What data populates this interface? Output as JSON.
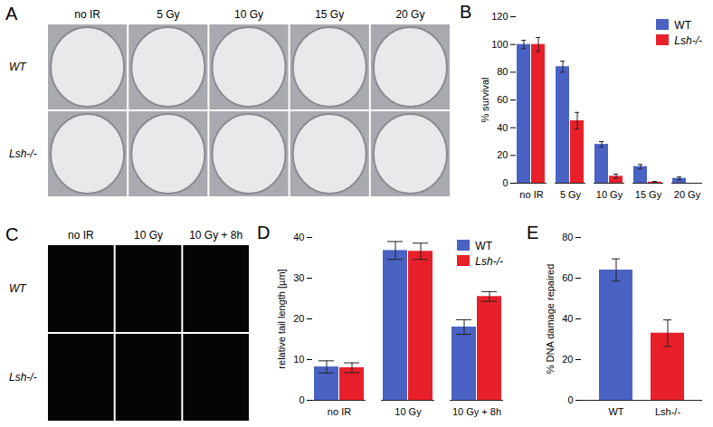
{
  "images": [
    {
      "title": "A",
      "type": "image",
      "columns": [
        "no IR",
        "5 Gy",
        "10 Gy",
        "15 Gy",
        "20 Gy"
      ],
      "rows": [
        "WT",
        "Lsh-/-"
      ]
    },
    {
      "title": "C",
      "type": "image",
      "columns": [
        "no IR",
        "10 Gy",
        "10 Gy + 8h"
      ],
      "rows": [
        "WT",
        "Lsh-/-"
      ]
    }
  ],
  "chart_data": [
    {
      "type": "bar",
      "title": "B",
      "y_label": "% survival",
      "categories": [
        "no IR",
        "5 Gy",
        "10 Gy",
        "15 Gy",
        "20 Gy"
      ],
      "series": [
        {
          "name": "WT",
          "color": "#4a62c4",
          "values": [
            100,
            84,
            28,
            12,
            3.5
          ],
          "errors": [
            3,
            4,
            2,
            1.5,
            1
          ]
        },
        {
          "name": "Lsh-/-",
          "color": "#e8202a",
          "values": [
            100,
            45,
            5,
            0.8,
            0
          ],
          "errors": [
            5,
            6,
            1.5,
            0.5,
            0
          ]
        }
      ],
      "ylim": [
        0,
        120
      ],
      "yticks": [
        0,
        20,
        40,
        60,
        80,
        100,
        120
      ],
      "legend": "top-right"
    },
    {
      "type": "bar",
      "title": "D",
      "y_label": "relative tail length [µm]",
      "categories": [
        "no IR",
        "10 Gy",
        "10 Gy + 8h"
      ],
      "series": [
        {
          "name": "WT",
          "color": "#4a62c4",
          "values": [
            8.2,
            36.8,
            18
          ],
          "errors": [
            1.5,
            2.2,
            1.8
          ]
        },
        {
          "name": "Lsh-/-",
          "color": "#e8202a",
          "values": [
            8,
            36.6,
            25.5
          ],
          "errors": [
            1.2,
            2,
            1.2
          ]
        }
      ],
      "ylim": [
        0,
        40
      ],
      "yticks": [
        0,
        10,
        20,
        30,
        40
      ],
      "legend": "top-right"
    },
    {
      "type": "bar",
      "title": "E",
      "y_label": "% DNA damage repaired",
      "categories": [
        "WT",
        "Lsh-/-"
      ],
      "values": [
        64,
        33
      ],
      "errors": [
        5.5,
        6.5
      ],
      "colors": [
        "#4a62c4",
        "#e8202a"
      ],
      "ylim": [
        0,
        80
      ],
      "yticks": [
        0,
        20,
        40,
        60,
        80
      ]
    }
  ]
}
